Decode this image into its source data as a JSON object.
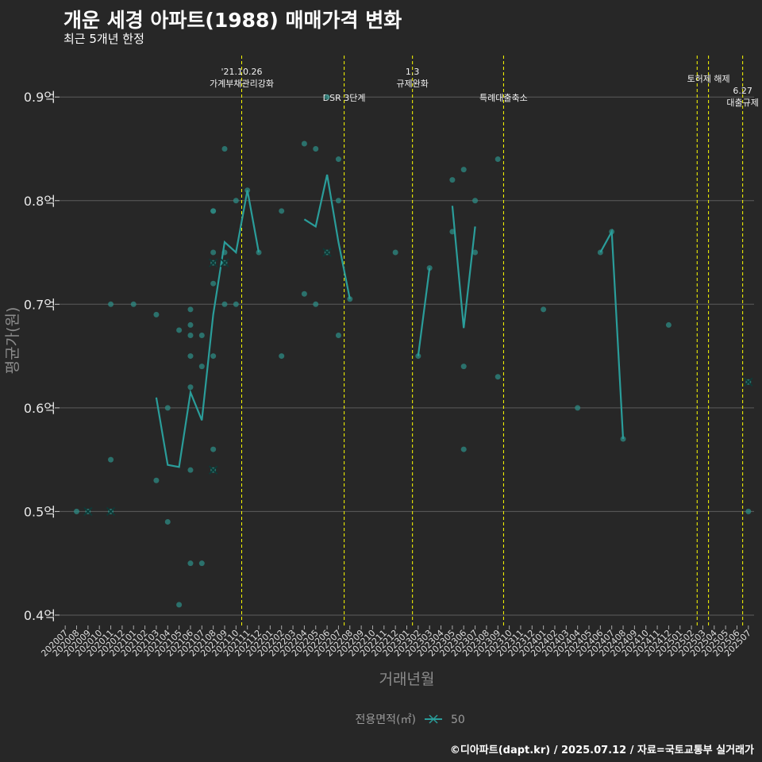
{
  "title": "개운 세경 아파트(1988) 매매가격 변화",
  "subtitle": "최근 5개년 한정",
  "footer": "©디아파트(dapt.kr) / 2025.07.12 / 자료=국토교통부 실거래가",
  "colors": {
    "background": "#272727",
    "series": "#2a9d9a",
    "grid": "#5c5c5c",
    "events": "#ffff00",
    "point": "#2e8b84"
  },
  "chart_data": {
    "type": "line",
    "title": "개운 세경 아파트(1988) 매매가격 변화",
    "xlabel": "거래년월",
    "ylabel": "평균가(원)",
    "ylim": [
      0.39,
      0.94
    ],
    "yticks": [
      0.4,
      0.5,
      0.6,
      0.7,
      0.8,
      0.9
    ],
    "ytick_labels": [
      "0.4억",
      "0.5억",
      "0.6억",
      "0.7억",
      "0.8억",
      "0.9억"
    ],
    "categories": [
      "202007",
      "202008",
      "202009",
      "202010",
      "202011",
      "202012",
      "202101",
      "202102",
      "202103",
      "202104",
      "202105",
      "202106",
      "202107",
      "202108",
      "202109",
      "202110",
      "202111",
      "202112",
      "202201",
      "202202",
      "202203",
      "202204",
      "202205",
      "202206",
      "202207",
      "202208",
      "202209",
      "202210",
      "202211",
      "202212",
      "202301",
      "202302",
      "202303",
      "202304",
      "202305",
      "202306",
      "202307",
      "202308",
      "202309",
      "202310",
      "202311",
      "202312",
      "202401",
      "202402",
      "202403",
      "202404",
      "202405",
      "202406",
      "202407",
      "202408",
      "202409",
      "202410",
      "202411",
      "202412",
      "202501",
      "202502",
      "202503",
      "202504",
      "202505",
      "202506",
      "202507"
    ],
    "legend_title": "전용면적(㎡)",
    "legend_entry": "50",
    "series": [
      {
        "name": "50",
        "segments": [
          [
            [
              "202103",
              0.61
            ],
            [
              "202104",
              0.545
            ],
            [
              "202105",
              0.543
            ],
            [
              "202106",
              0.615
            ],
            [
              "202107",
              0.588
            ],
            [
              "202108",
              0.69
            ],
            [
              "202109",
              0.76
            ],
            [
              "202110",
              0.75
            ],
            [
              "202111",
              0.81
            ],
            [
              "202112",
              0.75
            ]
          ],
          [
            [
              "202204",
              0.782
            ],
            [
              "202205",
              0.775
            ],
            [
              "202206",
              0.825
            ],
            [
              "202207",
              0.76
            ],
            [
              "202208",
              0.705
            ]
          ],
          [
            [
              "202302",
              0.65
            ],
            [
              "202303",
              0.735
            ]
          ],
          [
            [
              "202305",
              0.795
            ],
            [
              "202306",
              0.677
            ],
            [
              "202307",
              0.775
            ]
          ],
          [
            [
              "202406",
              0.75
            ],
            [
              "202407",
              0.77
            ],
            [
              "202408",
              0.57
            ]
          ]
        ]
      }
    ],
    "scatter": [
      [
        "202008",
        0.5
      ],
      [
        "202009",
        0.5
      ],
      [
        "202011",
        0.5
      ],
      [
        "202011",
        0.55
      ],
      [
        "202011",
        0.7
      ],
      [
        "202101",
        0.7
      ],
      [
        "202103",
        0.69
      ],
      [
        "202103",
        0.53
      ],
      [
        "202104",
        0.6
      ],
      [
        "202104",
        0.49
      ],
      [
        "202105",
        0.675
      ],
      [
        "202105",
        0.41
      ],
      [
        "202106",
        0.695
      ],
      [
        "202106",
        0.68
      ],
      [
        "202106",
        0.67
      ],
      [
        "202106",
        0.65
      ],
      [
        "202106",
        0.62
      ],
      [
        "202106",
        0.54
      ],
      [
        "202106",
        0.45
      ],
      [
        "202107",
        0.67
      ],
      [
        "202107",
        0.64
      ],
      [
        "202107",
        0.45
      ],
      [
        "202108",
        0.79
      ],
      [
        "202108",
        0.79
      ],
      [
        "202108",
        0.75
      ],
      [
        "202108",
        0.74
      ],
      [
        "202108",
        0.72
      ],
      [
        "202108",
        0.65
      ],
      [
        "202108",
        0.56
      ],
      [
        "202108",
        0.54
      ],
      [
        "202109",
        0.85
      ],
      [
        "202109",
        0.75
      ],
      [
        "202109",
        0.74
      ],
      [
        "202109",
        0.7
      ],
      [
        "202110",
        0.8
      ],
      [
        "202110",
        0.7
      ],
      [
        "202111",
        0.81
      ],
      [
        "202112",
        0.75
      ],
      [
        "202202",
        0.79
      ],
      [
        "202202",
        0.65
      ],
      [
        "202204",
        0.855
      ],
      [
        "202204",
        0.71
      ],
      [
        "202205",
        0.85
      ],
      [
        "202205",
        0.7
      ],
      [
        "202206",
        0.9
      ],
      [
        "202206",
        0.75
      ],
      [
        "202207",
        0.84
      ],
      [
        "202207",
        0.8
      ],
      [
        "202207",
        0.67
      ],
      [
        "202208",
        0.705
      ],
      [
        "202212",
        0.75
      ],
      [
        "202302",
        0.65
      ],
      [
        "202303",
        0.735
      ],
      [
        "202305",
        0.82
      ],
      [
        "202305",
        0.77
      ],
      [
        "202306",
        0.83
      ],
      [
        "202306",
        0.64
      ],
      [
        "202306",
        0.56
      ],
      [
        "202307",
        0.8
      ],
      [
        "202307",
        0.75
      ],
      [
        "202309",
        0.84
      ],
      [
        "202309",
        0.63
      ],
      [
        "202401",
        0.695
      ],
      [
        "202404",
        0.6
      ],
      [
        "202406",
        0.75
      ],
      [
        "202407",
        0.77
      ],
      [
        "202408",
        0.57
      ],
      [
        "202412",
        0.68
      ],
      [
        "202507",
        0.625
      ],
      [
        "202507",
        0.5
      ]
    ],
    "crosses": [
      [
        "202009",
        0.5
      ],
      [
        "202011",
        0.5
      ],
      [
        "202108",
        0.74
      ],
      [
        "202108",
        0.54
      ],
      [
        "202109",
        0.74
      ],
      [
        "202206",
        0.75
      ],
      [
        "202507",
        0.625
      ]
    ],
    "events": [
      {
        "x": "202110",
        "offset": 0.0,
        "label": "'21.10.26\n가계부채관리강화",
        "level": 1
      },
      {
        "x": "202207",
        "offset": 0.0,
        "label": "DSR 3단계",
        "level": 2
      },
      {
        "x": "202301",
        "offset": 0.0,
        "label": "1.3\n규제완화",
        "level": 1
      },
      {
        "x": "202309",
        "offset": 0.0,
        "label": "특례대출축소",
        "level": 2
      },
      {
        "x": "202502",
        "offset": 0.0,
        "label": "",
        "level": 0
      },
      {
        "x": "202503",
        "offset": 0.0,
        "label": "토허제 해제",
        "level": 0
      },
      {
        "x": "202506",
        "offset": 0.0,
        "label": "6.27\n대출규제",
        "level": 3
      }
    ]
  }
}
